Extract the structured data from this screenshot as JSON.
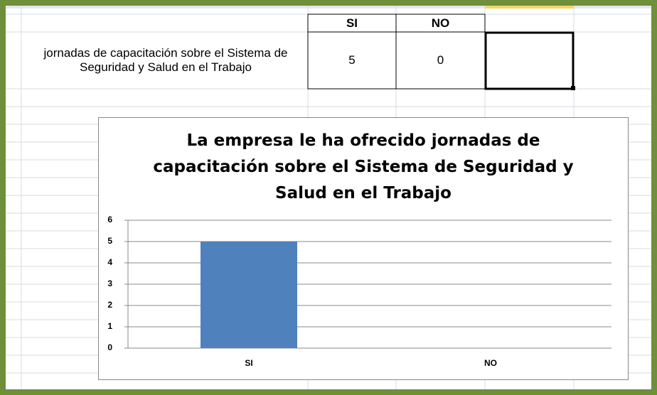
{
  "table": {
    "label": "jornadas de capacitación sobre el Sistema de Seguridad y Salud en el Trabajo",
    "header": [
      "SI",
      "NO"
    ],
    "values": [
      5,
      0
    ]
  },
  "chart_data": {
    "type": "bar",
    "title": "La empresa le ha ofrecido jornadas de capacitación sobre el Sistema de Seguridad y Salud en el Trabajo",
    "categories": [
      "SI",
      "NO"
    ],
    "values": [
      5,
      0
    ],
    "color": "#4f81bd",
    "ylim": [
      0,
      6
    ],
    "yticks": [
      0,
      1,
      2,
      3,
      4,
      5,
      6
    ],
    "grid": true
  }
}
